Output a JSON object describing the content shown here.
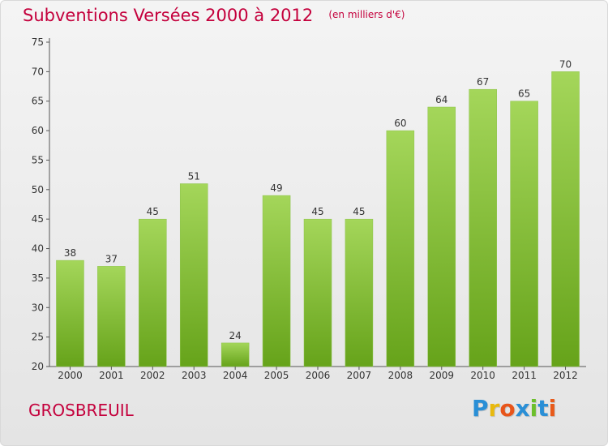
{
  "chart_data": {
    "type": "bar",
    "title": "Subventions Versées 2000 à 2012",
    "subtitle": "(en milliers d'€)",
    "categories": [
      "2000",
      "2001",
      "2002",
      "2003",
      "2004",
      "2005",
      "2006",
      "2007",
      "2008",
      "2009",
      "2010",
      "2011",
      "2012"
    ],
    "values": [
      38,
      37,
      45,
      51,
      24,
      49,
      45,
      45,
      60,
      64,
      67,
      65,
      70
    ],
    "ylim": [
      20,
      75
    ],
    "yticks": [
      20,
      25,
      30,
      35,
      40,
      45,
      50,
      55,
      60,
      65,
      70,
      75
    ],
    "grid": false,
    "bar_color_top": "#a4d65a",
    "bar_color_bottom": "#66a31a"
  },
  "commune": "GROSBREUIL",
  "logo": {
    "letters": [
      "P",
      "r",
      "o",
      "x",
      "i",
      "t",
      "i"
    ],
    "colors": [
      "#2a8fd6",
      "#e8b90e",
      "#e8551a",
      "#2a8fd6",
      "#6cbf2c",
      "#2a8fd6",
      "#e85a1a"
    ]
  }
}
